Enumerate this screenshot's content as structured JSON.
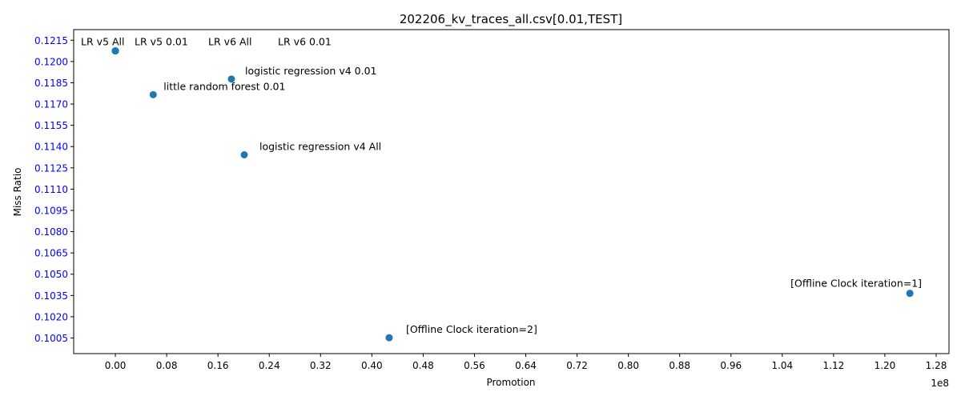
{
  "chart_data": {
    "type": "scatter",
    "title": "202206_kv_traces_all.csv[0.01,TEST]",
    "xlabel": "Promotion",
    "ylabel": "Miss Ratio",
    "x_offset_label": "1e8",
    "xlim": [
      -0.065,
      1.3
    ],
    "ylim": [
      0.0994,
      0.12225
    ],
    "x_ticks": [
      0.0,
      0.08,
      0.16,
      0.24,
      0.32,
      0.4,
      0.48,
      0.56,
      0.64,
      0.72,
      0.8,
      0.88,
      0.96,
      1.04,
      1.12,
      1.2,
      1.28
    ],
    "x_tick_labels": [
      "0.00",
      "0.08",
      "0.16",
      "0.24",
      "0.32",
      "0.40",
      "0.48",
      "0.56",
      "0.64",
      "0.72",
      "0.80",
      "0.88",
      "0.96",
      "1.04",
      "1.12",
      "1.20",
      "1.28"
    ],
    "y_ticks": [
      0.1005,
      0.102,
      0.1035,
      0.105,
      0.1065,
      0.108,
      0.1095,
      0.111,
      0.1125,
      0.114,
      0.1155,
      0.117,
      0.1185,
      0.12,
      0.1215
    ],
    "y_tick_labels": [
      "0.1005",
      "0.1020",
      "0.1035",
      "0.1050",
      "0.1065",
      "0.1080",
      "0.1095",
      "0.1110",
      "0.1125",
      "0.1140",
      "0.1155",
      "0.1170",
      "0.1185",
      "0.1200",
      "0.1215"
    ],
    "grid": false,
    "colors": {
      "marker": "#1f77b4",
      "y_tick_labels": "#0000ff",
      "x_tick_labels": "#000000"
    },
    "points": [
      {
        "label": "LR v5 All",
        "x": 0.0,
        "y": 0.12075
      },
      {
        "label": "LR v5 0.01",
        "x": 0.0,
        "y": 0.12075
      },
      {
        "label": "LR v6 All",
        "x": 0.0,
        "y": 0.12075
      },
      {
        "label": "LR v6 0.01",
        "x": 0.0,
        "y": 0.12075
      },
      {
        "label": "logistic regression v4 0.01",
        "x": 0.181,
        "y": 0.11876
      },
      {
        "label": "little random forest 0.01",
        "x": 0.059,
        "y": 0.11766
      },
      {
        "label": "logistic regression v4 All",
        "x": 0.201,
        "y": 0.11342
      },
      {
        "label": "[Offline Clock iteration=1]",
        "x": 1.239,
        "y": 0.10365
      },
      {
        "label": "[Offline Clock iteration=2]",
        "x": 0.427,
        "y": 0.10052
      }
    ]
  }
}
